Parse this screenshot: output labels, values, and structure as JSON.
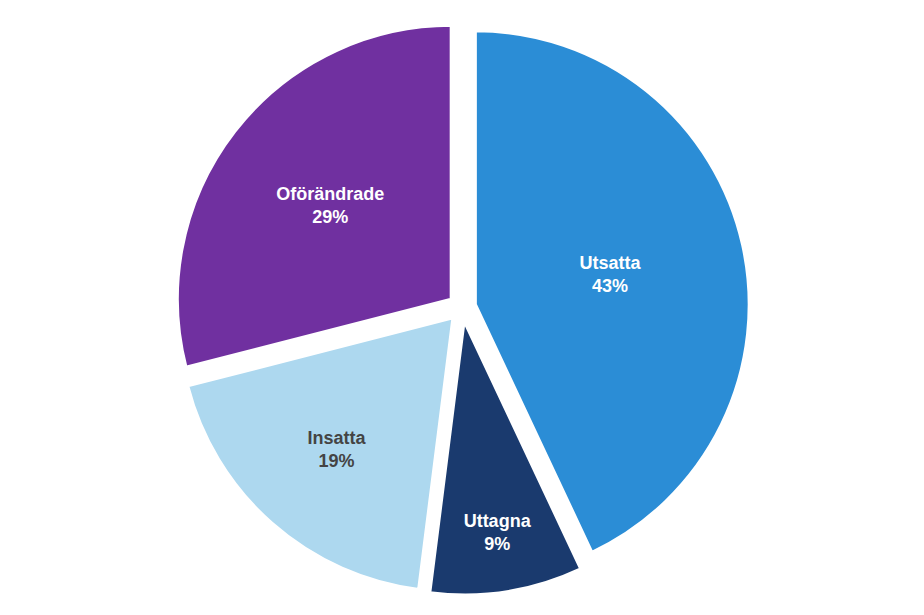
{
  "chart_data": {
    "type": "pie",
    "categories": [
      "Utsatta",
      "Uttagna",
      "Insatta",
      "Oförändrade"
    ],
    "values": [
      43,
      9,
      19,
      29
    ],
    "value_labels": [
      "43%",
      "9%",
      "19%",
      "29%"
    ],
    "data_labels": true,
    "colors": [
      "#2b8dd6",
      "#1a3a6e",
      "#add8ef",
      "#7030a0"
    ]
  }
}
